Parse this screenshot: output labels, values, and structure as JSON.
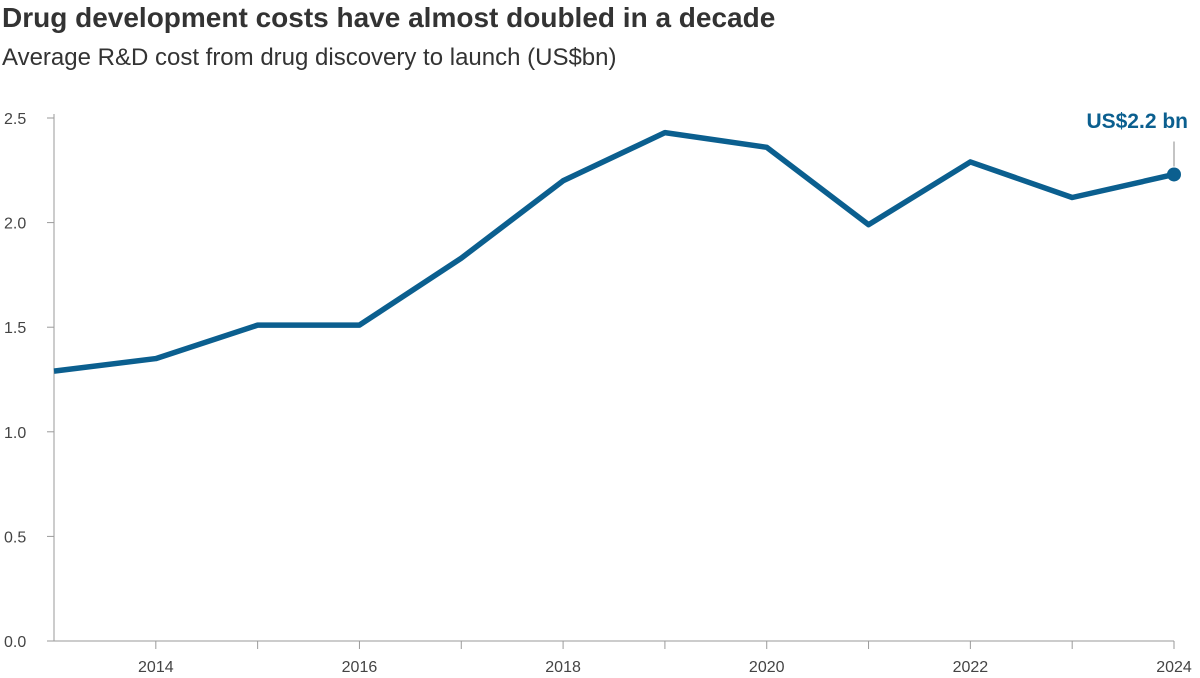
{
  "chart_data": {
    "type": "line",
    "title": "Drug development costs have almost doubled in a decade",
    "subtitle": "Average R&D cost from drug discovery to launch (US$bn)",
    "xlabel": "",
    "ylabel": "",
    "x": [
      2013,
      2014,
      2015,
      2016,
      2017,
      2018,
      2019,
      2020,
      2021,
      2022,
      2023,
      2024
    ],
    "series": [
      {
        "values": [
          1.29,
          1.35,
          1.51,
          1.51,
          1.83,
          2.2,
          2.43,
          2.36,
          1.99,
          2.29,
          2.12,
          2.23
        ]
      }
    ],
    "xlim": [
      2013,
      2024
    ],
    "ylim": [
      0,
      2.5
    ],
    "x_ticks": [
      "2014",
      "2016",
      "2018",
      "2020",
      "2022",
      "2024"
    ],
    "y_ticks": [
      "0.0",
      "0.5",
      "1.0",
      "1.5",
      "2.0",
      "2.5"
    ],
    "grid": false,
    "line_color": "#0b5f8f",
    "annotation": {
      "text": "US$2.2 bn",
      "x": 2024,
      "y": 2.23
    }
  }
}
